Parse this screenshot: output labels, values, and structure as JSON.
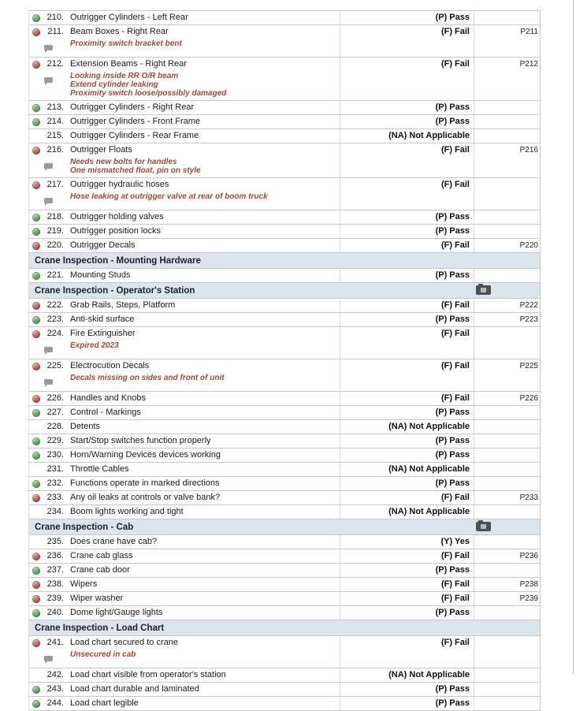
{
  "colors": {
    "pass_status": "#4a9b4a",
    "fail_status": "#b04a44",
    "section_header_bg": "#dce4ee",
    "comment_text": "#9c4a38",
    "row_border": "#c8c8c8"
  },
  "icons": {
    "pass": "pass-status-icon",
    "fail": "fail-status-icon",
    "none": "no-status-placeholder",
    "comment": "comment-bubble-icon",
    "camera": "camera-icon",
    "camera_lens": "camera-lens"
  },
  "rows": [
    {
      "kind": "item",
      "status": "pass",
      "number": "210.",
      "description": "Outrigger Cylinders - Left Rear",
      "result": "(P) Pass",
      "photo": "",
      "comments": []
    },
    {
      "kind": "item",
      "status": "fail",
      "number": "211.",
      "description": "Beam Boxes - Right Rear",
      "result": "(F) Fail",
      "photo": "P211",
      "comments": [
        "Proximity switch bracket bent"
      ]
    },
    {
      "kind": "item",
      "status": "fail",
      "number": "212.",
      "description": "Extension Beams - Right Rear",
      "result": "(F) Fail",
      "photo": "P212",
      "comments": [
        "Looking inside RR O/R beam",
        "Extend cylinder leaking",
        "Proximity switch loose/possibly damaged"
      ]
    },
    {
      "kind": "item",
      "status": "pass",
      "number": "213.",
      "description": "Outrigger Cylinders - Right Rear",
      "result": "(P) Pass",
      "photo": "",
      "comments": []
    },
    {
      "kind": "item",
      "status": "pass",
      "number": "214.",
      "description": "Outrigger Cylinders - Front Frame",
      "result": "(P) Pass",
      "photo": "",
      "comments": []
    },
    {
      "kind": "item",
      "status": "na",
      "number": "215.",
      "description": "Outrigger Cylinders - Rear Frame",
      "result": "(NA) Not Applicable",
      "photo": "",
      "comments": []
    },
    {
      "kind": "item",
      "status": "fail",
      "number": "216.",
      "description": "Outrigger Floats",
      "result": "(F) Fail",
      "photo": "P216",
      "comments": [
        "Needs new bolts for handles",
        "One mismatched float, pin on style"
      ]
    },
    {
      "kind": "item",
      "status": "fail",
      "number": "217.",
      "description": "Outrigger hydraulic hoses",
      "result": "(F) Fail",
      "photo": "",
      "comments": [
        "Hose leaking at outrigger valve at rear of boom truck"
      ]
    },
    {
      "kind": "item",
      "status": "pass",
      "number": "218.",
      "description": "Outrigger holding valves",
      "result": "(P) Pass",
      "photo": "",
      "comments": []
    },
    {
      "kind": "item",
      "status": "pass",
      "number": "219.",
      "description": "Outrigger position locks",
      "result": "(P) Pass",
      "photo": "",
      "comments": []
    },
    {
      "kind": "item",
      "status": "fail",
      "number": "220.",
      "description": "Outrigger Decals",
      "result": "(F) Fail",
      "photo": "P220",
      "comments": []
    },
    {
      "kind": "section",
      "title": "Crane Inspection - Mounting Hardware",
      "camera": false
    },
    {
      "kind": "item",
      "status": "pass",
      "number": "221.",
      "description": "Mounting Studs",
      "result": "(P) Pass",
      "photo": "",
      "comments": []
    },
    {
      "kind": "section",
      "title": "Crane Inspection - Operator's Station",
      "camera": true
    },
    {
      "kind": "item",
      "status": "fail",
      "number": "222.",
      "description": "Grab Rails, Steps, Platform",
      "result": "(F) Fail",
      "photo": "P222",
      "comments": []
    },
    {
      "kind": "item",
      "status": "pass",
      "number": "223.",
      "description": "Anti-skid surface",
      "result": "(P) Pass",
      "photo": "P223",
      "comments": []
    },
    {
      "kind": "item",
      "status": "fail",
      "number": "224.",
      "description": "Fire Extinguisher",
      "result": "(F) Fail",
      "photo": "",
      "comments": [
        "Expired 2023"
      ]
    },
    {
      "kind": "item",
      "status": "fail",
      "number": "225.",
      "description": "Electrocution Decals",
      "result": "(F) Fail",
      "photo": "P225",
      "comments": [
        "Decals missing on sides and front of unit"
      ]
    },
    {
      "kind": "item",
      "status": "fail",
      "number": "226.",
      "description": "Handles and Knobs",
      "result": "(F) Fail",
      "photo": "P226",
      "comments": []
    },
    {
      "kind": "item",
      "status": "pass",
      "number": "227.",
      "description": "Control - Markings",
      "result": "(P) Pass",
      "photo": "",
      "comments": []
    },
    {
      "kind": "item",
      "status": "na",
      "number": "228.",
      "description": "Detents",
      "result": "(NA) Not Applicable",
      "photo": "",
      "comments": []
    },
    {
      "kind": "item",
      "status": "pass",
      "number": "229.",
      "description": "Start/Stop switches function properly",
      "result": "(P) Pass",
      "photo": "",
      "comments": []
    },
    {
      "kind": "item",
      "status": "pass",
      "number": "230.",
      "description": "Horn/Warning Devices devices working",
      "result": "(P) Pass",
      "photo": "",
      "comments": []
    },
    {
      "kind": "item",
      "status": "na",
      "number": "231.",
      "description": "Throttle Cables",
      "result": "(NA) Not Applicable",
      "photo": "",
      "comments": []
    },
    {
      "kind": "item",
      "status": "pass",
      "number": "232.",
      "description": "Functions operate in marked directions",
      "result": "(P) Pass",
      "photo": "",
      "comments": []
    },
    {
      "kind": "item",
      "status": "fail",
      "number": "233.",
      "description": "Any oil leaks at controls or valve bank?",
      "result": "(F) Fail",
      "photo": "P233",
      "comments": []
    },
    {
      "kind": "item",
      "status": "na",
      "number": "234.",
      "description": "Boom lights working and tight",
      "result": "(NA) Not Applicable",
      "photo": "",
      "comments": []
    },
    {
      "kind": "section",
      "title": "Crane Inspection - Cab",
      "camera": true
    },
    {
      "kind": "item",
      "status": "na",
      "number": "235.",
      "description": "Does crane have cab?",
      "result": "(Y) Yes",
      "photo": "",
      "comments": []
    },
    {
      "kind": "item",
      "status": "fail",
      "number": "236.",
      "description": "Crane cab glass",
      "result": "(F) Fail",
      "photo": "P236",
      "comments": []
    },
    {
      "kind": "item",
      "status": "pass",
      "number": "237.",
      "description": "Crane cab door",
      "result": "(P) Pass",
      "photo": "",
      "comments": []
    },
    {
      "kind": "item",
      "status": "fail",
      "number": "238.",
      "description": "Wipers",
      "result": "(F) Fail",
      "photo": "P238",
      "comments": []
    },
    {
      "kind": "item",
      "status": "fail",
      "number": "239.",
      "description": "Wiper washer",
      "result": "(F) Fail",
      "photo": "P239",
      "comments": []
    },
    {
      "kind": "item",
      "status": "pass",
      "number": "240.",
      "description": "Dome light/Gauge lights",
      "result": "(P) Pass",
      "photo": "",
      "comments": []
    },
    {
      "kind": "section",
      "title": "Crane Inspection - Load Chart",
      "camera": false
    },
    {
      "kind": "item",
      "status": "fail",
      "number": "241.",
      "description": "Load chart secured to crane",
      "result": "(F) Fail",
      "photo": "",
      "comments": [
        "Unsecured in cab"
      ]
    },
    {
      "kind": "item",
      "status": "na",
      "number": "242.",
      "description": "Load chart visible from operator's station",
      "result": "(NA) Not Applicable",
      "photo": "",
      "comments": []
    },
    {
      "kind": "item",
      "status": "pass",
      "number": "243.",
      "description": "Load chart durable and laminated",
      "result": "(P) Pass",
      "photo": "",
      "comments": []
    },
    {
      "kind": "item",
      "status": "pass",
      "number": "244.",
      "description": "Load chart legible",
      "result": "(P) Pass",
      "photo": "",
      "comments": []
    }
  ]
}
